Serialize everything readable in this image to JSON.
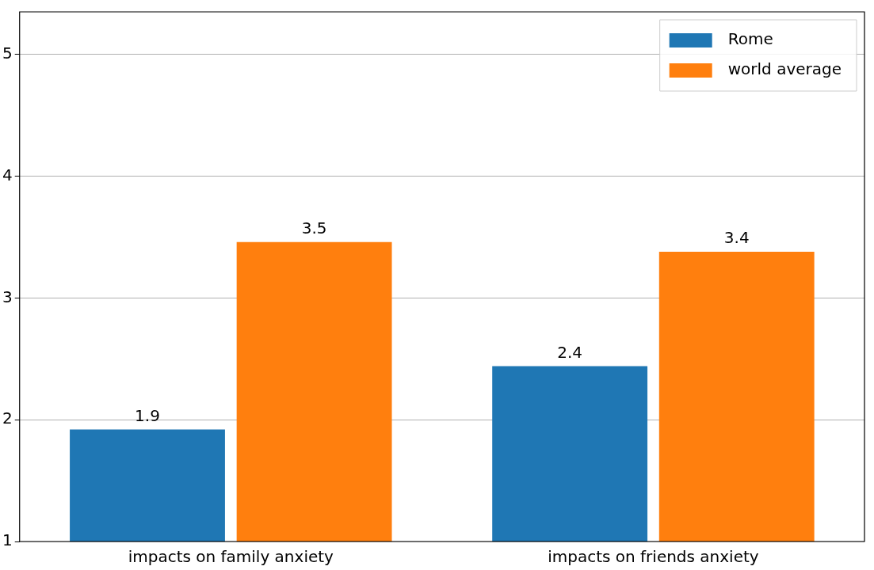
{
  "chart_data": {
    "type": "bar",
    "categories": [
      "impacts on family anxiety",
      "impacts on friends anxiety"
    ],
    "series": [
      {
        "name": "Rome",
        "color": "#1f77b4",
        "values": [
          1.92,
          2.44
        ],
        "value_labels": [
          "1.9",
          "2.4"
        ]
      },
      {
        "name": "world average",
        "color": "#ff7f0e",
        "values": [
          3.46,
          3.38
        ],
        "value_labels": [
          "3.5",
          "3.4"
        ]
      }
    ],
    "ylim": [
      1,
      5.35
    ],
    "yticks": [
      1,
      2,
      3,
      4,
      5
    ],
    "grid": "y",
    "legend": "top right"
  }
}
